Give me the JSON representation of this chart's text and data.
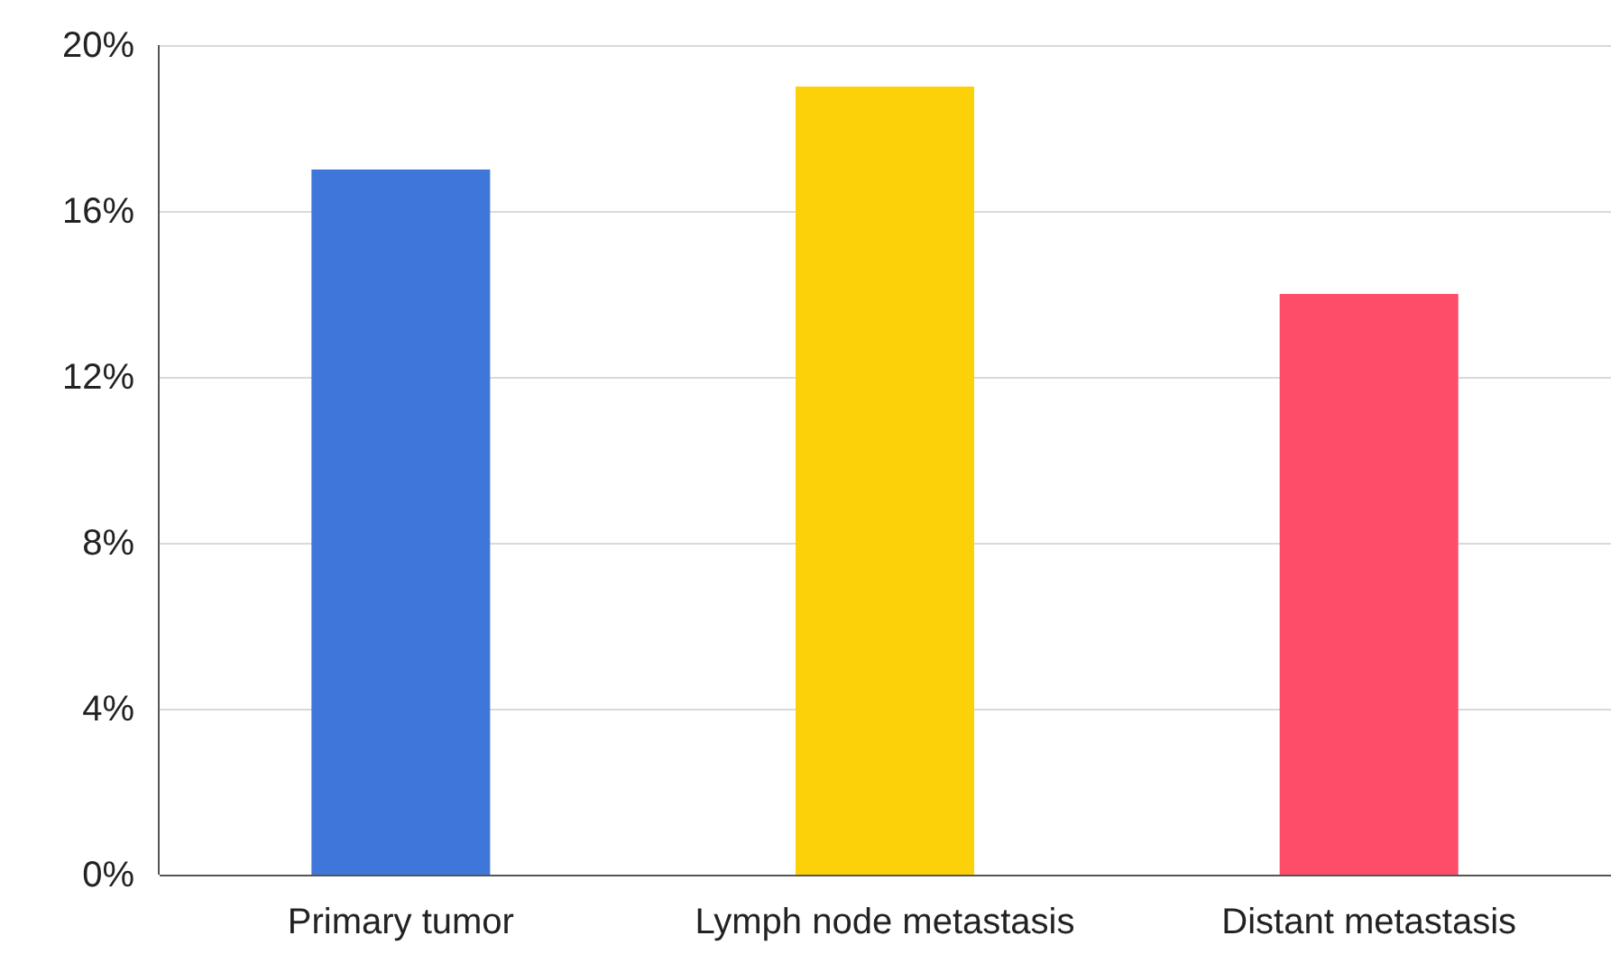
{
  "chart_data": {
    "type": "bar",
    "categories": [
      "Primary tumor",
      "Lymph node metastasis",
      "Distant metastasis"
    ],
    "values": [
      17,
      19,
      14
    ],
    "colors": [
      "#3f76d9",
      "#fdd10a",
      "#fd4d68"
    ],
    "ylim": [
      0,
      20
    ],
    "yticks": [
      {
        "value": 0,
        "label": "0%"
      },
      {
        "value": 4,
        "label": "4%"
      },
      {
        "value": 8,
        "label": "8%"
      },
      {
        "value": 12,
        "label": "12%"
      },
      {
        "value": 16,
        "label": "16%"
      },
      {
        "value": 20,
        "label": "20%"
      }
    ],
    "grid": "y"
  }
}
